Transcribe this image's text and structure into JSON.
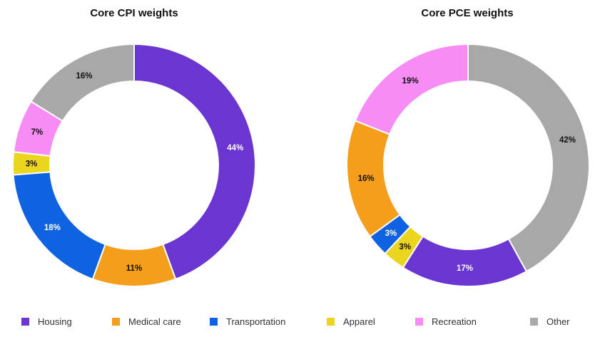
{
  "colors": {
    "Housing": "#6b35d2",
    "Medical care": "#f59e1c",
    "Transportation": "#0f62e0",
    "Apparel": "#ecd51e",
    "Recreation": "#f78cf5",
    "Other": "#a8a8a8"
  },
  "chart_data": [
    {
      "type": "pie",
      "variant": "donut",
      "title": "Core CPI weights",
      "slices": [
        {
          "name": "Housing",
          "value": 44,
          "label": "44%",
          "label_color": "#ffffff"
        },
        {
          "name": "Medical care",
          "value": 11,
          "label": "11%",
          "label_color": "#111111"
        },
        {
          "name": "Transportation",
          "value": 18,
          "label": "18%",
          "label_color": "#ffffff"
        },
        {
          "name": "Apparel",
          "value": 3,
          "label": "3%",
          "label_color": "#111111"
        },
        {
          "name": "Recreation",
          "value": 7,
          "label": "7%",
          "label_color": "#111111"
        },
        {
          "name": "Other",
          "value": 16,
          "label": "16%",
          "label_color": "#111111"
        }
      ]
    },
    {
      "type": "pie",
      "variant": "donut",
      "title": "Core PCE weights",
      "slices": [
        {
          "name": "Other",
          "value": 42,
          "label": "42%",
          "label_color": "#111111"
        },
        {
          "name": "Housing",
          "value": 17,
          "label": "17%",
          "label_color": "#ffffff"
        },
        {
          "name": "Apparel",
          "value": 3,
          "label": "3%",
          "label_color": "#111111"
        },
        {
          "name": "Transportation",
          "value": 3,
          "label": "3%",
          "label_color": "#ffffff"
        },
        {
          "name": "Medical care",
          "value": 16,
          "label": "16%",
          "label_color": "#111111"
        },
        {
          "name": "Recreation",
          "value": 19,
          "label": "19%",
          "label_color": "#111111"
        }
      ]
    }
  ],
  "legend": {
    "placement": "bottom",
    "items": [
      "Housing",
      "Medical care",
      "Transportation",
      "Apparel",
      "Recreation",
      "Other"
    ]
  }
}
